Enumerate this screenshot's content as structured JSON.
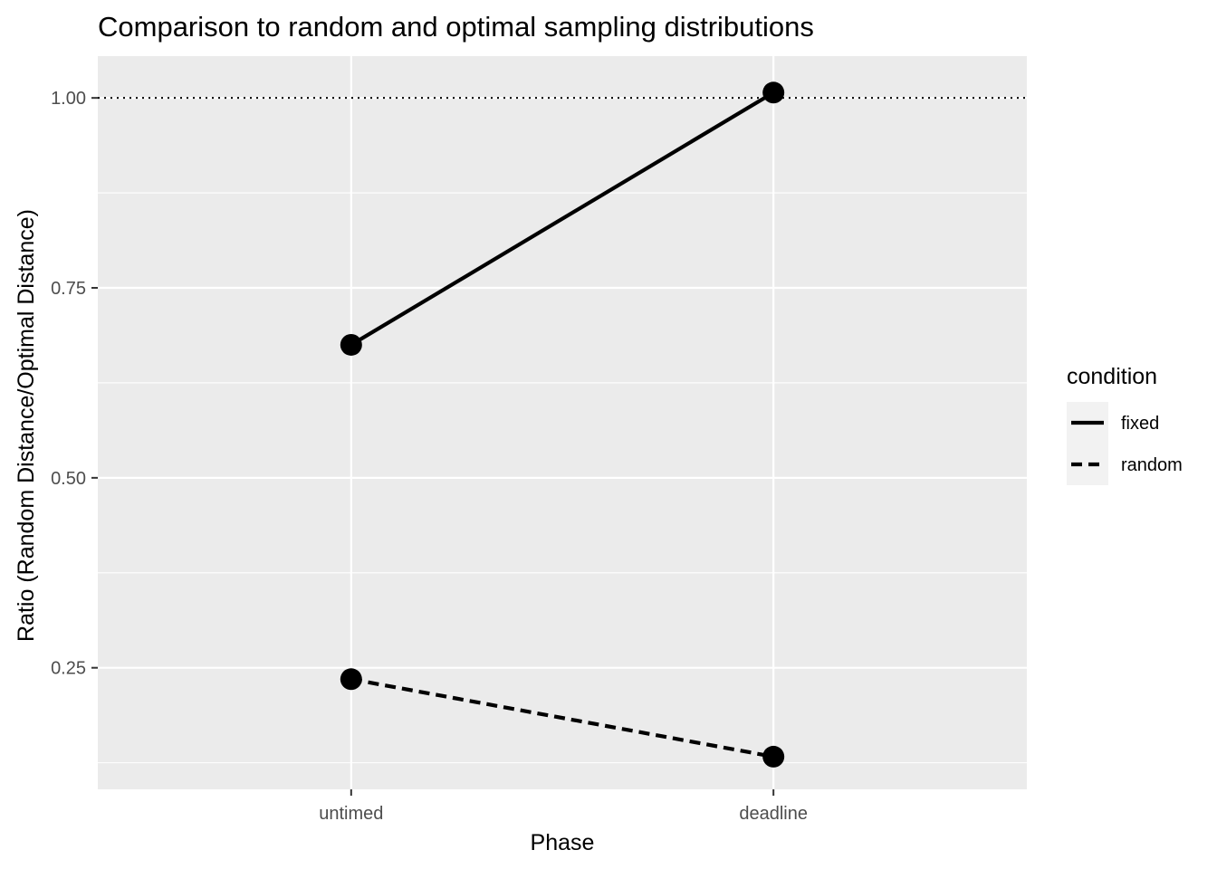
{
  "chart_data": {
    "type": "line",
    "title": "Comparison to random and optimal sampling distributions",
    "xlabel": "Phase",
    "ylabel": "Ratio (Random Distance/Optimal Distance)",
    "categories": [
      "untimed",
      "deadline"
    ],
    "ylim": [
      0.09,
      1.055
    ],
    "yticks": [
      0.25,
      0.5,
      0.75,
      1.0
    ],
    "ytick_labels": [
      "0.25",
      "0.50",
      "0.75",
      "1.00"
    ],
    "reference_line": {
      "y": 1.0,
      "style": "dotted"
    },
    "grid": true,
    "background": "#ebebeb",
    "legend": {
      "title": "condition",
      "position": "right"
    },
    "series": [
      {
        "name": "fixed",
        "linetype": "solid",
        "values": [
          0.675,
          1.007
        ],
        "color": "#000000"
      },
      {
        "name": "random",
        "linetype": "dashed",
        "values": [
          0.235,
          0.133
        ],
        "color": "#000000"
      }
    ]
  }
}
